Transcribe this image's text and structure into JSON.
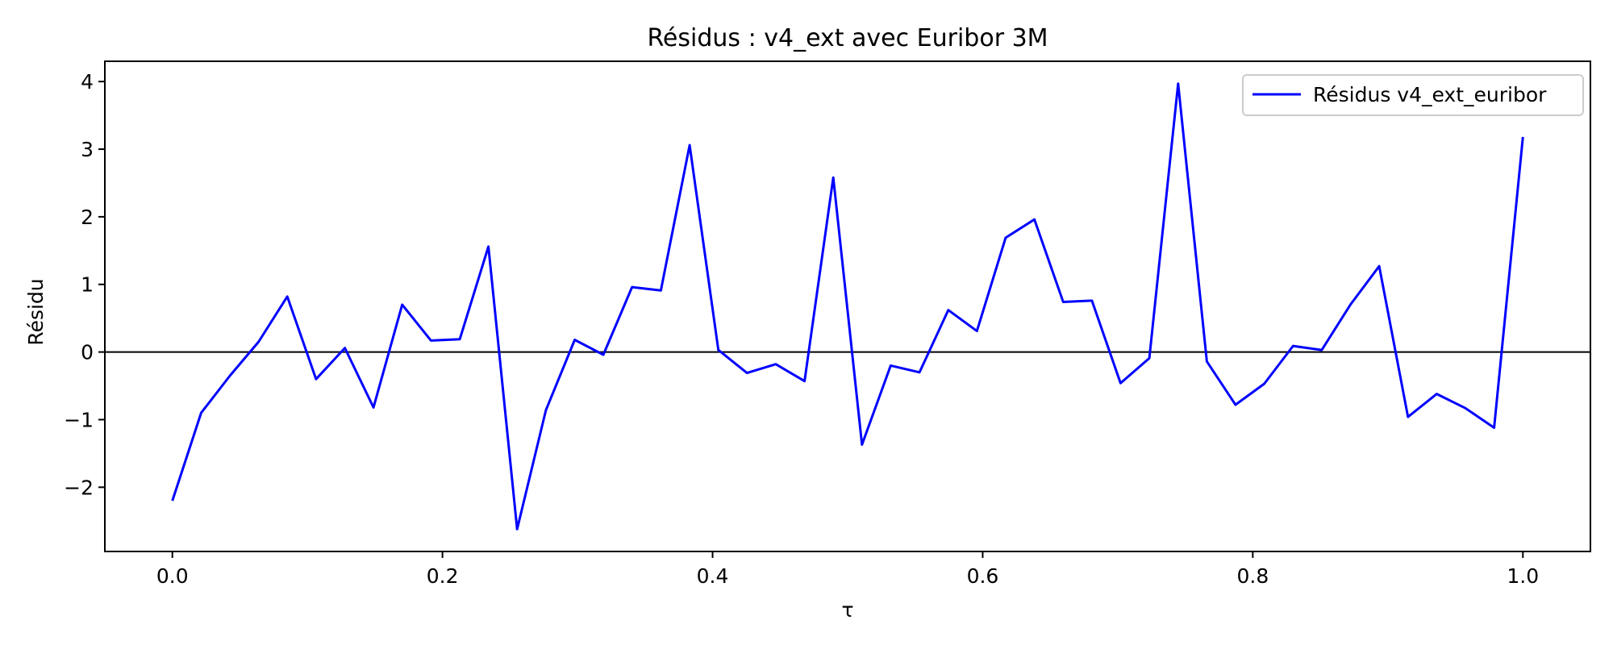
{
  "chart_data": {
    "type": "line",
    "title": "Résidus : v4_ext avec Euribor 3M",
    "xlabel": "τ",
    "ylabel": "Résidu",
    "xlim": [
      -0.05,
      1.05
    ],
    "ylim": [
      -2.95,
      4.3
    ],
    "xticks": [
      0.0,
      0.2,
      0.4,
      0.6,
      0.8,
      1.0
    ],
    "xtick_labels": [
      "0.0",
      "0.2",
      "0.4",
      "0.6",
      "0.8",
      "1.0"
    ],
    "yticks": [
      -2,
      -1,
      0,
      1,
      2,
      3,
      4
    ],
    "ytick_labels": [
      "−2",
      "−1",
      "0",
      "1",
      "2",
      "3",
      "4"
    ],
    "grid": false,
    "legend_position": "top-right",
    "reference_line": {
      "y": 0,
      "color": "#000000"
    },
    "series": [
      {
        "name": "Résidus v4_ext_euribor",
        "color": "#0000ff",
        "x": [
          0.0,
          0.0213,
          0.0426,
          0.0638,
          0.0851,
          0.1064,
          0.1277,
          0.1489,
          0.1702,
          0.1915,
          0.2128,
          0.234,
          0.2553,
          0.2766,
          0.2979,
          0.3191,
          0.3404,
          0.3617,
          0.383,
          0.4043,
          0.4255,
          0.4468,
          0.4681,
          0.4894,
          0.5106,
          0.5319,
          0.5532,
          0.5745,
          0.5957,
          0.617,
          0.6383,
          0.6596,
          0.6809,
          0.7021,
          0.7234,
          0.7447,
          0.766,
          0.7872,
          0.8085,
          0.8298,
          0.8511,
          0.8723,
          0.8936,
          0.9149,
          0.9362,
          0.9574,
          0.9787,
          1.0
        ],
        "values": [
          -2.2,
          -0.9,
          -0.35,
          0.15,
          0.82,
          -0.4,
          0.06,
          -0.82,
          0.7,
          0.17,
          0.19,
          1.56,
          -2.62,
          -0.86,
          0.18,
          -0.04,
          0.96,
          0.91,
          3.06,
          0.03,
          -0.31,
          -0.18,
          -0.43,
          2.58,
          -1.37,
          -0.2,
          -0.3,
          0.62,
          0.31,
          1.69,
          1.96,
          0.74,
          0.76,
          -0.46,
          -0.09,
          3.97,
          -0.14,
          -0.78,
          -0.47,
          0.09,
          0.03,
          0.7,
          1.27,
          -0.96,
          -0.62,
          -0.83,
          -1.12,
          3.18
        ]
      }
    ]
  }
}
